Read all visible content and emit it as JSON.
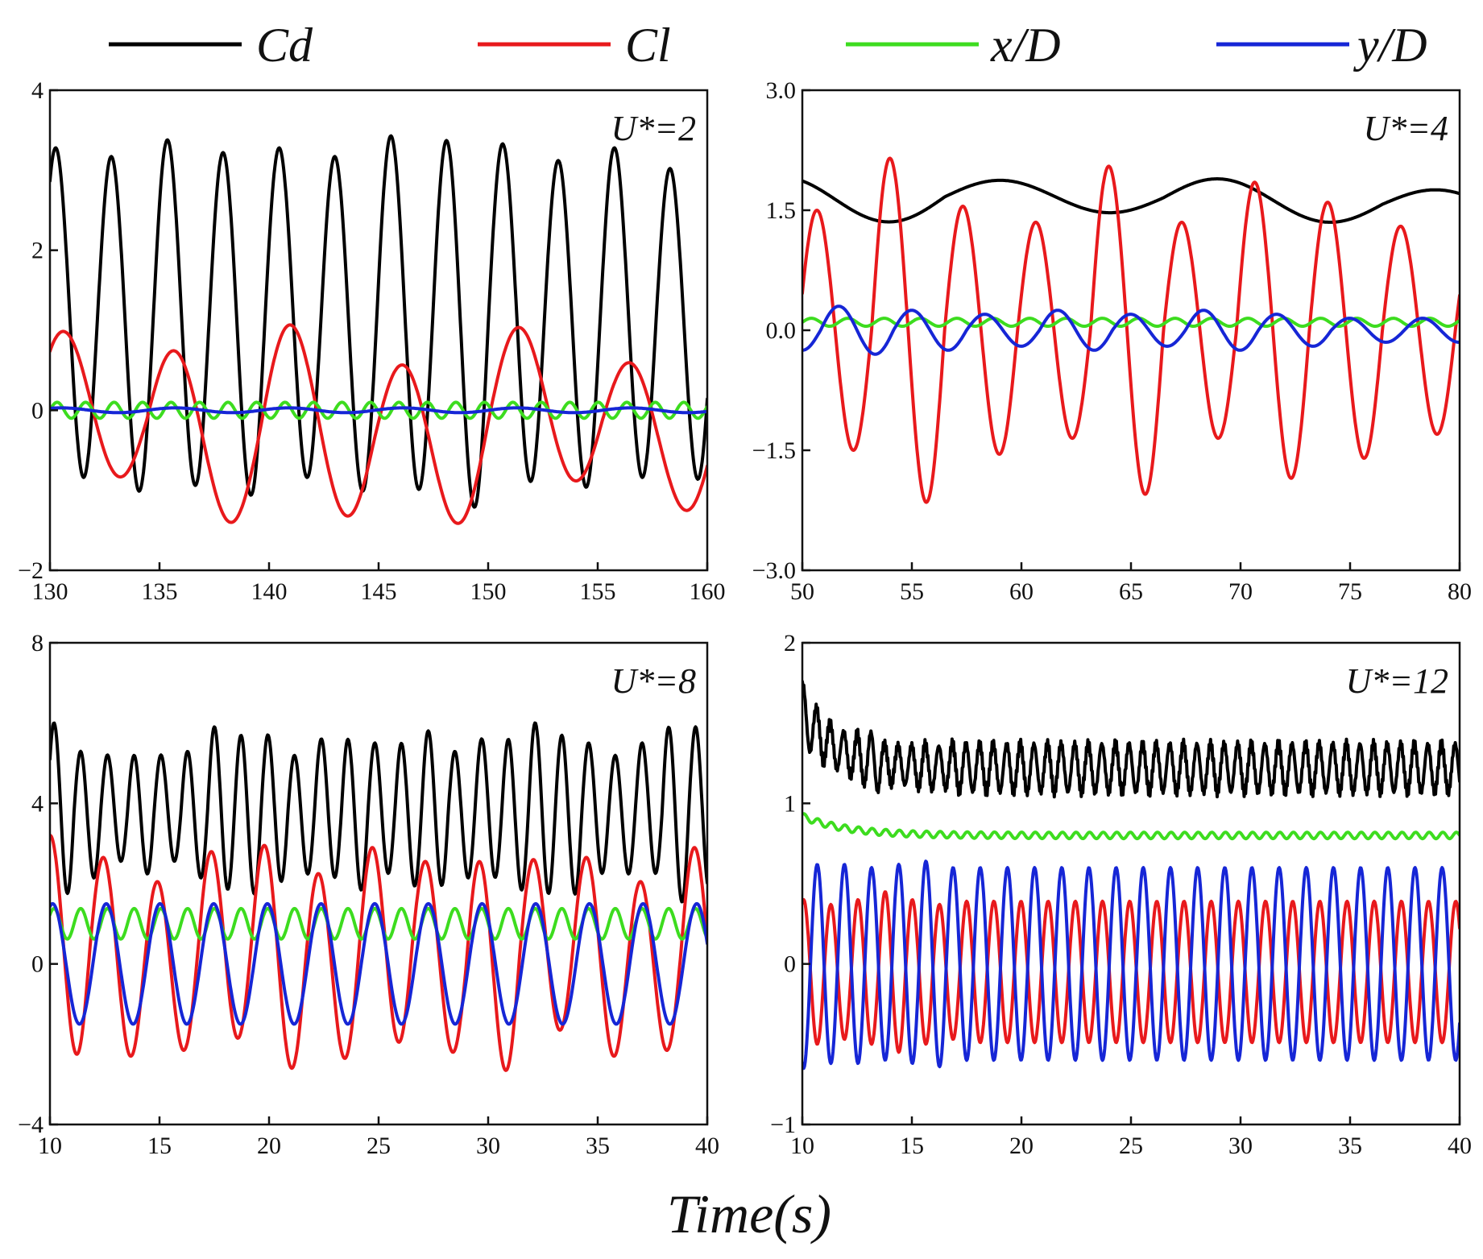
{
  "legend": [
    {
      "label": "Cd",
      "color": "#000000"
    },
    {
      "label": "Cl",
      "color": "#e8191c"
    },
    {
      "label": "x/D",
      "color": "#3ddc1f"
    },
    {
      "label": "y/D",
      "color": "#1626d6"
    }
  ],
  "xlabel": "Time(s)",
  "chart_data": [
    {
      "type": "line",
      "annotation": "U*=2",
      "xlim": [
        130,
        160
      ],
      "ylim": [
        -2,
        4
      ],
      "xticks": [
        130,
        135,
        140,
        145,
        150,
        155,
        160
      ],
      "yticks": [
        -2,
        0,
        2,
        4
      ],
      "ytick_labels": [
        "−2",
        "0",
        "2",
        "4"
      ],
      "series": [
        {
          "name": "Cd",
          "color": "#000000",
          "signal": {
            "offset": 1.15,
            "period": 2.55,
            "amps": [
              2.05,
              2.1,
              2.15,
              2.15,
              2.05,
              2.1,
              2.2,
              2.3,
              2.1,
              2.05,
              2.05,
              1.95
            ],
            "phase": 0.15,
            "harm": [
              [
                2,
                0.1
              ]
            ]
          }
        },
        {
          "name": "Cl",
          "color": "#e8191c",
          "signal": {
            "offset": -0.2,
            "period": 5.2,
            "amps": [
              0.9,
              1.05,
              1.15,
              1.05,
              0.95,
              0.9
            ],
            "phase": 0.15,
            "harm": [
              [
                2.0,
                0.25
              ],
              [
                4.0,
                0.12
              ]
            ]
          }
        },
        {
          "name": "x/D",
          "color": "#3ddc1f",
          "signal": {
            "offset": 0.0,
            "period": 1.3,
            "amps": [
              0.1
            ],
            "phase": 0.0,
            "harm": []
          }
        },
        {
          "name": "y/D",
          "color": "#1626d6",
          "signal": {
            "offset": 0.0,
            "period": 5.2,
            "amps": [
              0.03
            ],
            "phase": 0.15,
            "harm": []
          }
        }
      ]
    },
    {
      "type": "line",
      "annotation": "U*=4",
      "xlim": [
        50,
        80
      ],
      "ylim": [
        -3,
        3
      ],
      "xticks": [
        50,
        55,
        60,
        65,
        70,
        75,
        80
      ],
      "yticks": [
        -3,
        -1.5,
        0,
        1.5,
        3
      ],
      "ytick_labels": [
        "−3.0",
        "−1.5",
        "0.0",
        "1.5",
        "3.0"
      ],
      "series": [
        {
          "name": "Cd",
          "color": "#000000",
          "signal": {
            "offset": 1.55,
            "period": 10.0,
            "amps": [
              0.3,
              0.2,
              0.25,
              0.2
            ],
            "phase": 0.35,
            "harm": [
              [
                6.0,
                0.08
              ],
              [
                12.0,
                0.05
              ]
            ]
          }
        },
        {
          "name": "Cl",
          "color": "#e8191c",
          "signal": {
            "offset": 0.0,
            "period": 3.33,
            "amps": [
              1.5,
              2.15,
              1.55,
              1.35,
              2.05,
              1.35,
              1.85,
              1.6,
              1.3,
              1.2
            ],
            "phase": 0.05,
            "harm": []
          }
        },
        {
          "name": "x/D",
          "color": "#3ddc1f",
          "signal": {
            "offset": 0.1,
            "period": 1.66,
            "amps": [
              0.05
            ],
            "phase": 0.0,
            "harm": []
          }
        },
        {
          "name": "y/D",
          "color": "#1626d6",
          "signal": {
            "offset": 0.0,
            "period": 3.33,
            "amps": [
              0.25,
              0.3,
              0.25,
              0.2,
              0.25,
              0.2,
              0.25,
              0.2,
              0.15,
              0.15
            ],
            "phase": 0.75,
            "harm": []
          }
        }
      ]
    },
    {
      "type": "line",
      "annotation": "U*=8",
      "xlim": [
        10,
        40
      ],
      "ylim": [
        -4,
        8
      ],
      "xticks": [
        10,
        15,
        20,
        25,
        30,
        35,
        40
      ],
      "yticks": [
        -4,
        0,
        4,
        8
      ],
      "ytick_labels": [
        "−4",
        "0",
        "4",
        "8"
      ],
      "series": [
        {
          "name": "Cd",
          "color": "#000000",
          "signal": {
            "offset": 3.8,
            "period": 1.22,
            "amps": [
              2.1,
              1.6,
              1.3,
              1.5,
              1.3,
              1.6,
              2.0,
              2.0,
              1.8,
              1.5,
              1.7,
              1.9,
              1.6,
              1.8,
              1.9,
              1.6,
              1.7,
              1.9,
              2.1,
              2.0,
              1.6,
              1.5,
              1.6,
              2.2,
              2.0,
              1.5
            ],
            "phase": 0.1,
            "harm": [
              [
                2,
                0.12
              ]
            ]
          }
        },
        {
          "name": "Cl",
          "color": "#e8191c",
          "signal": {
            "offset": 0.2,
            "period": 2.45,
            "amps": [
              2.8,
              2.3,
              2.2,
              2.4,
              2.6,
              2.4,
              2.5,
              2.2,
              2.7,
              2.2,
              2.3,
              2.2,
              2.5
            ],
            "phase": 0.25,
            "harm": [
              [
                3.0,
                0.35
              ]
            ]
          }
        },
        {
          "name": "x/D",
          "color": "#3ddc1f",
          "signal": {
            "offset": 1.0,
            "period": 1.22,
            "amps": [
              0.38
            ],
            "phase": 0.1,
            "harm": []
          }
        },
        {
          "name": "y/D",
          "color": "#1626d6",
          "signal": {
            "offset": 0.0,
            "period": 2.45,
            "amps": [
              1.5
            ],
            "phase": 0.2,
            "harm": []
          }
        }
      ]
    },
    {
      "type": "line",
      "annotation": "U*=12",
      "xlim": [
        10,
        40
      ],
      "ylim": [
        -1,
        2
      ],
      "xticks": [
        10,
        15,
        20,
        25,
        30,
        35,
        40
      ],
      "yticks": [
        -1,
        0,
        1,
        2
      ],
      "ytick_labels": [
        "−1",
        "0",
        "1",
        "2"
      ],
      "series": [
        {
          "name": "Cd",
          "color": "#000000",
          "signal": {
            "offset": 1.22,
            "period": 0.62,
            "amps": [
              0.18,
              0.15,
              0.13,
              0.13,
              0.15,
              0.18,
              0.12,
              0.12,
              0.13,
              0.14,
              0.13,
              0.15
            ],
            "phase": 0.2,
            "harm": [
              [
                0.11,
                0.03
              ]
            ],
            "decay": [
              0.35,
              1.5
            ]
          }
        },
        {
          "name": "Cl",
          "color": "#e8191c",
          "signal": {
            "offset": -0.05,
            "period": 1.24,
            "amps": [
              0.45,
              0.42,
              0.45,
              0.5,
              0.45,
              0.42,
              0.44
            ],
            "phase": 0.2,
            "harm": []
          }
        },
        {
          "name": "x/D",
          "color": "#3ddc1f",
          "signal": {
            "offset": 0.8,
            "period": 0.62,
            "amps": [
              0.02
            ],
            "phase": 0.1,
            "harm": [],
            "decay": [
              0.12,
              2.0
            ]
          }
        },
        {
          "name": "y/D",
          "color": "#1626d6",
          "signal": {
            "offset": 0.0,
            "period": 1.24,
            "amps": [
              0.65,
              0.62,
              0.62,
              0.6,
              0.62,
              0.64,
              0.6
            ],
            "phase": 0.7,
            "harm": []
          }
        }
      ]
    }
  ]
}
